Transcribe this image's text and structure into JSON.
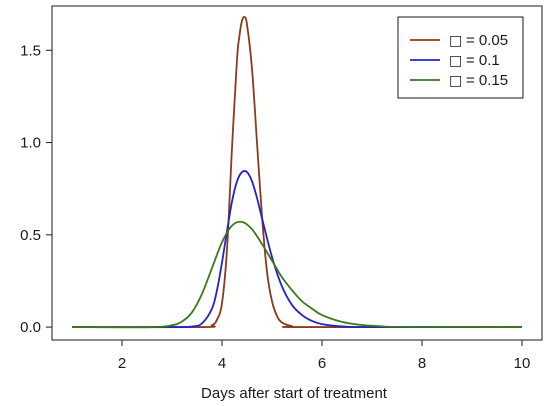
{
  "chart_data": {
    "type": "line",
    "xlabel": "Days after start of treatment",
    "ylabel": "",
    "xlim": [
      0.6,
      10.4
    ],
    "ylim": [
      -0.07,
      1.74
    ],
    "xticks": [
      2,
      4,
      6,
      8,
      10
    ],
    "yticks": [
      0.0,
      0.5,
      1.0,
      1.5
    ],
    "ytick_labels": [
      "0.0",
      "0.5",
      "1.0",
      "1.5"
    ],
    "grid": false,
    "legend_position": "top-right",
    "series": [
      {
        "name": "= 0.05",
        "symbol": "□",
        "color": "#8b3a1a",
        "x": [
          1.0,
          3.6,
          3.8,
          3.9,
          4.0,
          4.1,
          4.2,
          4.3,
          4.35,
          4.4,
          4.45,
          4.5,
          4.6,
          4.7,
          4.8,
          4.9,
          5.0,
          5.1,
          5.2,
          5.4,
          5.6,
          10.0
        ],
        "values": [
          0.0,
          0.0,
          0.01,
          0.04,
          0.13,
          0.42,
          0.97,
          1.45,
          1.58,
          1.66,
          1.68,
          1.64,
          1.4,
          1.0,
          0.6,
          0.3,
          0.14,
          0.06,
          0.025,
          0.005,
          0.0,
          0.0
        ]
      },
      {
        "name": "= 0.1",
        "symbol": "□",
        "color": "#2222cc",
        "x": [
          1.0,
          3.0,
          3.4,
          3.6,
          3.8,
          3.9,
          4.0,
          4.1,
          4.2,
          4.3,
          4.4,
          4.5,
          4.6,
          4.7,
          4.8,
          5.0,
          5.2,
          5.4,
          5.6,
          5.8,
          6.0,
          6.4,
          7.0,
          10.0
        ],
        "values": [
          0.0,
          0.0,
          0.003,
          0.02,
          0.1,
          0.2,
          0.35,
          0.52,
          0.68,
          0.79,
          0.84,
          0.84,
          0.79,
          0.7,
          0.59,
          0.38,
          0.22,
          0.12,
          0.065,
          0.033,
          0.016,
          0.004,
          0.0,
          0.0
        ]
      },
      {
        "name": "= 0.15",
        "symbol": "□",
        "color": "#3a7a1a",
        "x": [
          1.0,
          2.6,
          3.0,
          3.2,
          3.4,
          3.6,
          3.8,
          4.0,
          4.2,
          4.4,
          4.6,
          4.8,
          5.0,
          5.2,
          5.4,
          5.6,
          5.8,
          6.0,
          6.4,
          6.8,
          7.2,
          7.6,
          10.0
        ],
        "values": [
          0.0,
          0.0,
          0.01,
          0.03,
          0.08,
          0.18,
          0.32,
          0.46,
          0.55,
          0.57,
          0.53,
          0.45,
          0.36,
          0.27,
          0.2,
          0.14,
          0.1,
          0.065,
          0.028,
          0.011,
          0.004,
          0.001,
          0.0
        ]
      }
    ]
  }
}
